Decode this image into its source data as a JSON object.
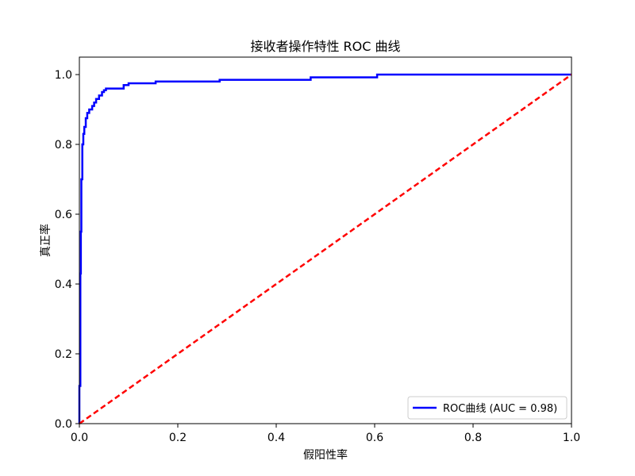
{
  "chart_data": {
    "type": "line",
    "title": "接收者操作特性 ROC 曲线",
    "xlabel": "假阳性率",
    "ylabel": "真正率",
    "xlim": [
      0.0,
      1.0
    ],
    "ylim": [
      0.0,
      1.05
    ],
    "xticks": [
      0.0,
      0.2,
      0.4,
      0.6,
      0.8,
      1.0
    ],
    "yticks": [
      0.0,
      0.2,
      0.4,
      0.6,
      0.8,
      1.0
    ],
    "xtick_labels": [
      "0.0",
      "0.2",
      "0.4",
      "0.6",
      "0.8",
      "1.0"
    ],
    "ytick_labels": [
      "0.0",
      "0.2",
      "0.4",
      "0.6",
      "0.8",
      "1.0"
    ],
    "grid": false,
    "legend_position": "lower-right",
    "legend": {
      "label": "ROC曲线 (AUC = 0.98)"
    },
    "series": [
      {
        "name": "ROC曲线 (AUC = 0.98)",
        "color": "#0000ff",
        "style": "solid",
        "x": [
          0.0,
          0.0,
          0.002,
          0.002,
          0.003,
          0.003,
          0.004,
          0.004,
          0.006,
          0.006,
          0.008,
          0.008,
          0.01,
          0.01,
          0.013,
          0.013,
          0.016,
          0.016,
          0.02,
          0.02,
          0.026,
          0.026,
          0.03,
          0.03,
          0.034,
          0.034,
          0.04,
          0.04,
          0.046,
          0.046,
          0.05,
          0.05,
          0.054,
          0.054,
          0.09,
          0.09,
          0.1,
          0.1,
          0.155,
          0.155,
          0.285,
          0.285,
          0.47,
          0.47,
          0.605,
          0.605,
          1.0
        ],
        "y": [
          0.0,
          0.108,
          0.108,
          0.43,
          0.43,
          0.55,
          0.55,
          0.7,
          0.7,
          0.8,
          0.8,
          0.83,
          0.83,
          0.85,
          0.85,
          0.875,
          0.875,
          0.89,
          0.89,
          0.9,
          0.9,
          0.91,
          0.91,
          0.92,
          0.92,
          0.93,
          0.93,
          0.94,
          0.94,
          0.95,
          0.95,
          0.955,
          0.955,
          0.96,
          0.96,
          0.97,
          0.97,
          0.975,
          0.975,
          0.98,
          0.98,
          0.985,
          0.985,
          0.992,
          0.992,
          1.0,
          1.0
        ]
      },
      {
        "name": "",
        "color": "#ff0000",
        "style": "dashed",
        "x": [
          0.0,
          1.0
        ],
        "y": [
          0.0,
          1.0
        ]
      }
    ]
  }
}
